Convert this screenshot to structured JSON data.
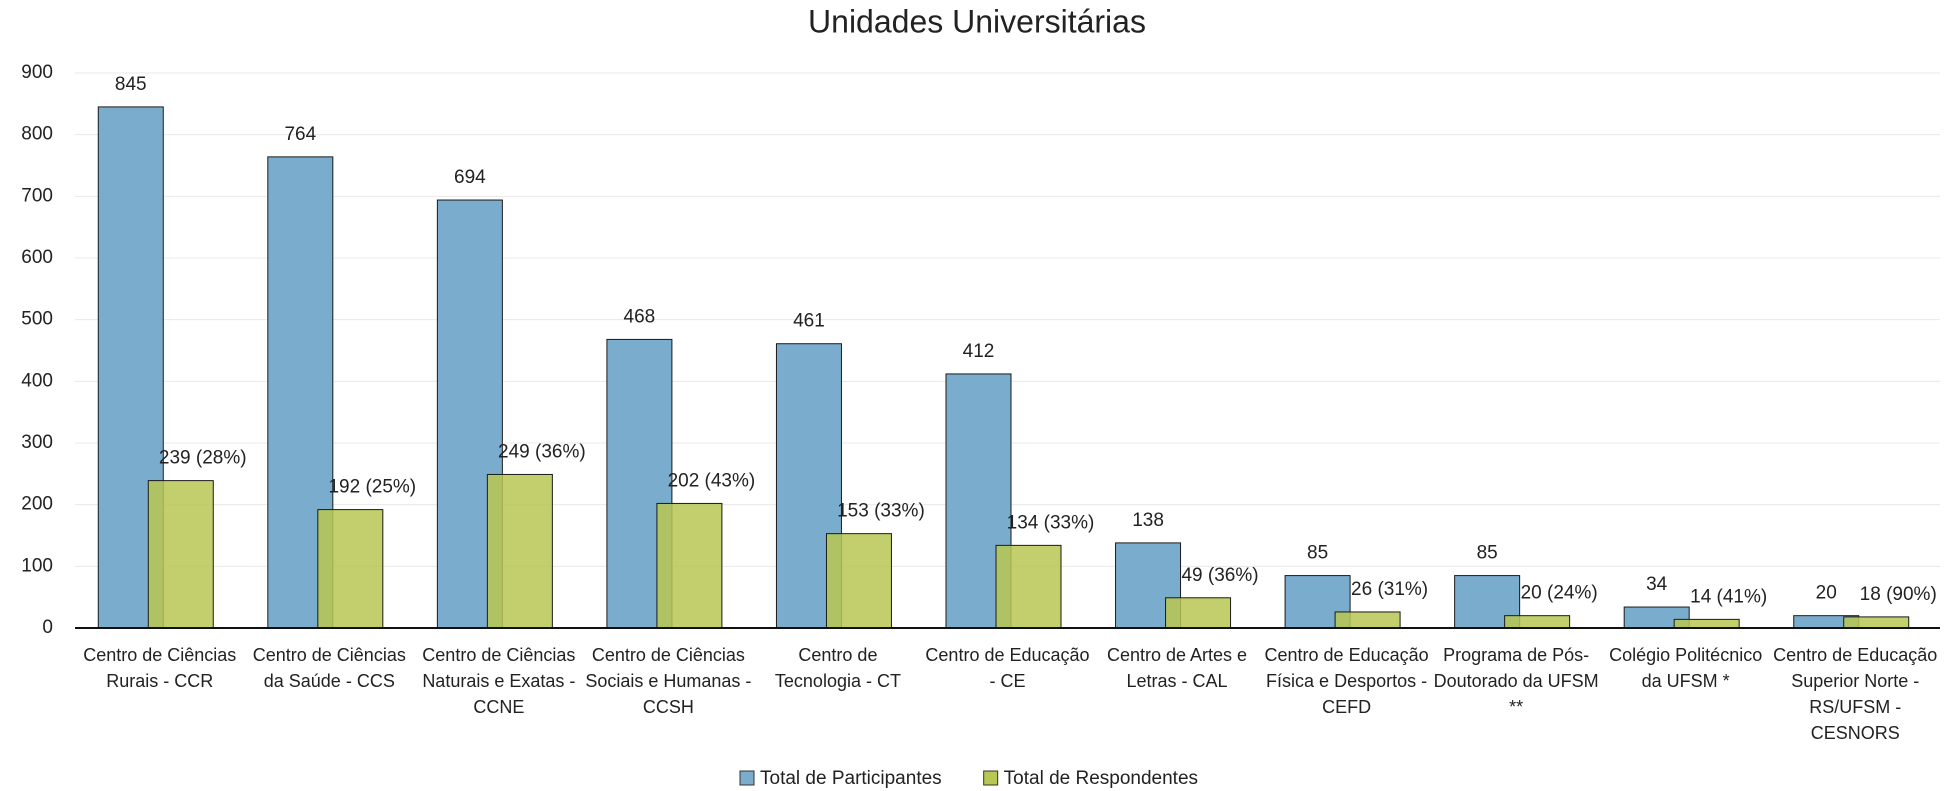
{
  "chart_data": {
    "type": "bar",
    "title": "Unidades Universitárias",
    "categories": [
      "Centro de Ciências Rurais - CCR",
      "Centro de Ciências da Saúde - CCS",
      "Centro de Ciências Naturais e Exatas - CCNE",
      "Centro de Ciências Sociais e Humanas - CCSH",
      "Centro de Tecnologia - CT",
      "Centro de Educação - CE",
      "Centro de Artes e Letras - CAL",
      "Centro de Educação Física e Desportos - CEFD",
      "Programa de Pós-Doutorado da UFSM **",
      "Colégio Politécnico da UFSM *",
      "Centro de Educação Superior Norte - RS/UFSM - CESNORS"
    ],
    "series": [
      {
        "name": "Total de Participantes",
        "color": "#7aadcd",
        "values": [
          845,
          764,
          694,
          468,
          461,
          412,
          138,
          85,
          85,
          34,
          20
        ]
      },
      {
        "name": "Total de Respondentes",
        "color": "#b8c752",
        "values": [
          239,
          192,
          249,
          202,
          153,
          134,
          49,
          26,
          20,
          14,
          18
        ],
        "value_labels": [
          "239 (28%)",
          "192 (25%)",
          "249 (36%)",
          "202 (43%)",
          "153 (33%)",
          "134 (33%)",
          "49 (36%)",
          "26 (31%)",
          "20 (24%)",
          "14 (41%)",
          "18 (90%)"
        ]
      }
    ],
    "ylim": [
      0,
      900
    ],
    "yticks": [
      0,
      100,
      200,
      300,
      400,
      500,
      600,
      700,
      800,
      900
    ],
    "grid": true,
    "legend": "bottom"
  }
}
